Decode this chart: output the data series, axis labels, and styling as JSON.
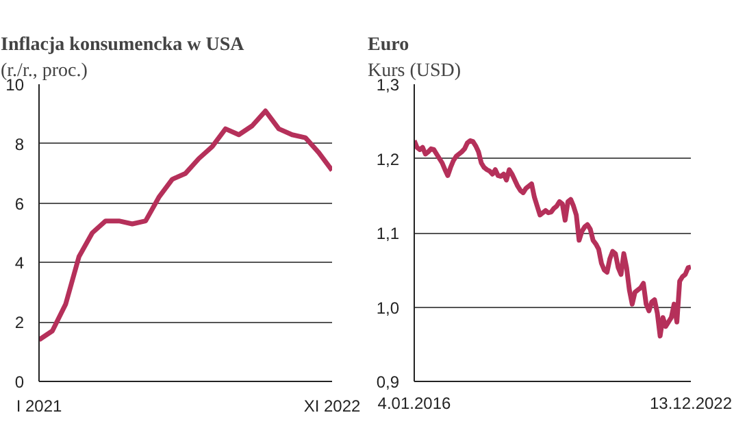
{
  "chart_data": [
    {
      "type": "line",
      "title": "Inflacja konsumencka w USA",
      "subtitle": "(r./r., proc.)",
      "categories": [
        "I 2021",
        null,
        null,
        null,
        null,
        null,
        null,
        null,
        null,
        null,
        null,
        null,
        null,
        null,
        null,
        null,
        null,
        null,
        null,
        null,
        null,
        null,
        "XI 2022"
      ],
      "values": [
        1.4,
        1.7,
        2.6,
        4.2,
        5.0,
        5.4,
        5.4,
        5.3,
        5.4,
        6.2,
        6.8,
        7.0,
        7.5,
        7.9,
        8.5,
        8.3,
        8.6,
        9.1,
        8.5,
        8.3,
        8.2,
        7.7,
        7.1
      ],
      "color": "#b5305a",
      "ylim": [
        0,
        10
      ],
      "yticks": [
        0,
        2,
        4,
        6,
        8,
        10
      ],
      "grid": "y"
    },
    {
      "type": "line",
      "title": "Euro",
      "subtitle": "Kurs (USD)",
      "categories": [
        "4.01.2016",
        null,
        null,
        null,
        null,
        null,
        null,
        null,
        null,
        null,
        null,
        null,
        null,
        null,
        null,
        null,
        null,
        null,
        null,
        null,
        null,
        null,
        null,
        null,
        null,
        null,
        null,
        null,
        null,
        null,
        null,
        null,
        null,
        null,
        null,
        null,
        null,
        null,
        null,
        null,
        null,
        null,
        null,
        null,
        null,
        null,
        null,
        null,
        null,
        null,
        null,
        null,
        null,
        null,
        null,
        null,
        null,
        null,
        null,
        null,
        null,
        null,
        null,
        null,
        null,
        null,
        null,
        null,
        null,
        null,
        null,
        null,
        null,
        null,
        null,
        null,
        null,
        null,
        null,
        null,
        null,
        null,
        null,
        null,
        null,
        null,
        null,
        null,
        null,
        null,
        null,
        null,
        null,
        null,
        null,
        null,
        null,
        null,
        null,
        "13.12.2022"
      ],
      "values": [
        1.224,
        1.215,
        1.212,
        1.215,
        1.206,
        1.209,
        1.213,
        1.212,
        1.206,
        1.2,
        1.194,
        1.185,
        1.177,
        1.188,
        1.197,
        1.203,
        1.206,
        1.209,
        1.213,
        1.221,
        1.224,
        1.223,
        1.217,
        1.209,
        1.194,
        1.188,
        1.185,
        1.183,
        1.179,
        1.185,
        1.177,
        1.176,
        1.179,
        1.171,
        1.185,
        1.179,
        1.171,
        1.163,
        1.157,
        1.154,
        1.16,
        1.163,
        1.166,
        1.148,
        1.136,
        1.124,
        1.127,
        1.13,
        1.127,
        1.128,
        1.133,
        1.136,
        1.142,
        1.139,
        1.117,
        1.142,
        1.145,
        1.136,
        1.124,
        1.09,
        1.102,
        1.108,
        1.111,
        1.105,
        1.09,
        1.085,
        1.078,
        1.059,
        1.05,
        1.047,
        1.065,
        1.075,
        1.072,
        1.053,
        1.044,
        1.072,
        1.053,
        1.023,
        1.004,
        1.02,
        1.023,
        1.026,
        1.032,
        1.004,
        0.995,
        1.007,
        1.01,
        0.992,
        0.961,
        0.986,
        0.974,
        0.98,
        0.986,
        1.004,
        0.98,
        1.035,
        1.041,
        1.044,
        1.053,
        1.054
      ],
      "color": "#b5305a",
      "ylim": [
        0.9,
        1.3
      ],
      "yticks": [
        {
          "value": 0.9,
          "label": "0,9"
        },
        {
          "value": 1.0,
          "label": "1,0"
        },
        {
          "value": 1.1,
          "label": "1,1"
        },
        {
          "value": 1.2,
          "label": "1,2"
        },
        {
          "value": 1.3,
          "label": "1,3"
        }
      ],
      "grid": "y"
    }
  ]
}
